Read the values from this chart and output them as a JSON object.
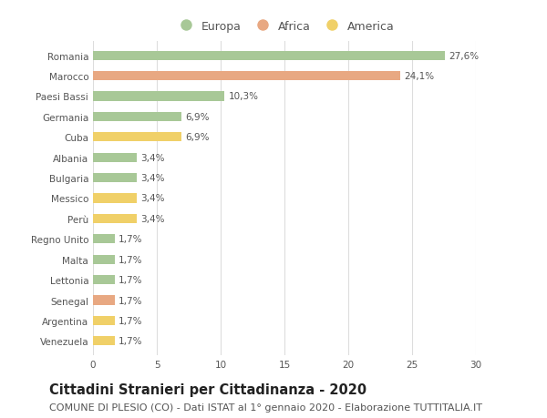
{
  "categories": [
    "Romania",
    "Marocco",
    "Paesi Bassi",
    "Germania",
    "Cuba",
    "Albania",
    "Bulgaria",
    "Messico",
    "Perù",
    "Regno Unito",
    "Malta",
    "Lettonia",
    "Senegal",
    "Argentina",
    "Venezuela"
  ],
  "values": [
    27.6,
    24.1,
    10.3,
    6.9,
    6.9,
    3.4,
    3.4,
    3.4,
    3.4,
    1.7,
    1.7,
    1.7,
    1.7,
    1.7,
    1.7
  ],
  "labels": [
    "27,6%",
    "24,1%",
    "10,3%",
    "6,9%",
    "6,9%",
    "3,4%",
    "3,4%",
    "3,4%",
    "3,4%",
    "1,7%",
    "1,7%",
    "1,7%",
    "1,7%",
    "1,7%",
    "1,7%"
  ],
  "continents": [
    "Europa",
    "Africa",
    "Europa",
    "Europa",
    "America",
    "Europa",
    "Europa",
    "America",
    "America",
    "Europa",
    "Europa",
    "Europa",
    "Africa",
    "America",
    "America"
  ],
  "colors": {
    "Europa": "#a8c897",
    "Africa": "#e8a882",
    "America": "#f0d068"
  },
  "xlim": [
    0,
    30
  ],
  "xticks": [
    0,
    5,
    10,
    15,
    20,
    25,
    30
  ],
  "title": "Cittadini Stranieri per Cittadinanza - 2020",
  "subtitle": "COMUNE DI PLESIO (CO) - Dati ISTAT al 1° gennaio 2020 - Elaborazione TUTTITALIA.IT",
  "background_color": "#ffffff",
  "grid_color": "#dddddd",
  "bar_height": 0.45,
  "title_fontsize": 10.5,
  "subtitle_fontsize": 8,
  "label_fontsize": 7.5,
  "tick_fontsize": 7.5,
  "legend_fontsize": 9,
  "text_color": "#555555",
  "title_color": "#222222"
}
